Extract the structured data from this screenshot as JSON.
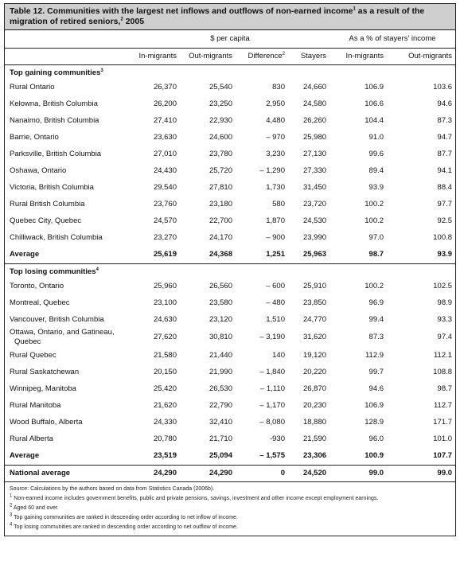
{
  "table": {
    "title_main": "Table 12. Communities with the largest net inflows and outflows of non-earned income",
    "title_sup1": "1",
    "title_mid": " as a result of the migration of retired seniors,",
    "title_sup2": "2",
    "title_end": " 2005",
    "group_headers": {
      "per_capita": "$ per capita",
      "percent": "As a % of stayers' income"
    },
    "column_headers": {
      "in_migrants": "In-migrants",
      "out_migrants": "Out-migrants",
      "difference": "Difference",
      "difference_sup": "2",
      "stayers": "Stayers",
      "pct_in_migrants": "In-migrants",
      "pct_out_migrants": "Out-migrants"
    },
    "sections": [
      {
        "label": "Top gaining communities",
        "label_sup": "3",
        "rows": [
          {
            "name": "Rural Ontario",
            "in": "26,370",
            "out": "25,540",
            "diff": "830",
            "stayers": "24,660",
            "pin": "106.9",
            "pout": "103.6"
          },
          {
            "name": "Kelowna, British Columbia",
            "in": "26,200",
            "out": "23,250",
            "diff": "2,950",
            "stayers": "24,580",
            "pin": "106.6",
            "pout": "94.6"
          },
          {
            "name": "Nanaimo, British Columbia",
            "in": "27,410",
            "out": "22,930",
            "diff": "4,480",
            "stayers": "26,260",
            "pin": "104.4",
            "pout": "87.3"
          },
          {
            "name": "Barrie, Ontario",
            "in": "23,630",
            "out": "24,600",
            "diff": "– 970",
            "stayers": "25,980",
            "pin": "91.0",
            "pout": "94.7"
          },
          {
            "name": "Parksville, British Columbia",
            "in": "27,010",
            "out": "23,780",
            "diff": "3,230",
            "stayers": "27,130",
            "pin": "99.6",
            "pout": "87.7"
          },
          {
            "name": "Oshawa, Ontario",
            "in": "24,430",
            "out": "25,720",
            "diff": "– 1,290",
            "stayers": "27,330",
            "pin": "89.4",
            "pout": "94.1"
          },
          {
            "name": "Victoria, British Columbia",
            "in": "29,540",
            "out": "27,810",
            "diff": "1,730",
            "stayers": "31,450",
            "pin": "93.9",
            "pout": "88.4"
          },
          {
            "name": "Rural British Columbia",
            "in": "23,760",
            "out": "23,180",
            "diff": "580",
            "stayers": "23,720",
            "pin": "100.2",
            "pout": "97.7"
          },
          {
            "name": "Quebec City, Quebec",
            "in": "24,570",
            "out": "22,700",
            "diff": "1,870",
            "stayers": "24,530",
            "pin": "100.2",
            "pout": "92.5"
          },
          {
            "name": "Chilliwack, British Columbia",
            "in": "23,270",
            "out": "24,170",
            "diff": "– 900",
            "stayers": "23,990",
            "pin": "97.0",
            "pout": "100.8"
          }
        ],
        "average": {
          "name": "Average",
          "in": "25,619",
          "out": "24,368",
          "diff": "1,251",
          "stayers": "25,963",
          "pin": "98.7",
          "pout": "93.9"
        }
      },
      {
        "label": "Top losing communities",
        "label_sup": "4",
        "rows": [
          {
            "name": "Toronto, Ontario",
            "in": "25,960",
            "out": "26,560",
            "diff": "– 600",
            "stayers": "25,910",
            "pin": "100.2",
            "pout": "102.5"
          },
          {
            "name": "Montreal, Quebec",
            "in": "23,100",
            "out": "23,580",
            "diff": "– 480",
            "stayers": "23,850",
            "pin": "96.9",
            "pout": "98.9"
          },
          {
            "name": "Vancouver, British Columbia",
            "in": "24,630",
            "out": "23,120",
            "diff": "1,510",
            "stayers": "24,770",
            "pin": "99.4",
            "pout": "93.3"
          },
          {
            "name": "Ottawa, Ontario, and Gatineau,",
            "name2": "Quebec",
            "in": "27,620",
            "out": "30,810",
            "diff": "– 3,190",
            "stayers": "31,620",
            "pin": "87.3",
            "pout": "97.4"
          },
          {
            "name": "Rural Quebec",
            "in": "21,580",
            "out": "21,440",
            "diff": "140",
            "stayers": "19,120",
            "pin": "112.9",
            "pout": "112.1"
          },
          {
            "name": "Rural Saskatchewan",
            "in": "20,150",
            "out": "21,990",
            "diff": "– 1,840",
            "stayers": "20,220",
            "pin": "99.7",
            "pout": "108.8"
          },
          {
            "name": "Winnipeg, Manitoba",
            "in": "25,420",
            "out": "26,530",
            "diff": "– 1,110",
            "stayers": "26,870",
            "pin": "94.6",
            "pout": "98.7"
          },
          {
            "name": "Rural Manitoba",
            "in": "21,620",
            "out": "22,790",
            "diff": "– 1,170",
            "stayers": "20,230",
            "pin": "106.9",
            "pout": "112.7"
          },
          {
            "name": "Wood Buffalo, Alberta",
            "in": "24,330",
            "out": "32,410",
            "diff": "– 8,080",
            "stayers": "18,880",
            "pin": "128.9",
            "pout": "171.7"
          },
          {
            "name": "Rural Alberta",
            "in": "20,780",
            "out": "21,710",
            "diff": "-930",
            "stayers": "21,590",
            "pin": "96.0",
            "pout": "101.0"
          }
        ],
        "average": {
          "name": "Average",
          "in": "23,519",
          "out": "25,094",
          "diff": "– 1,575",
          "stayers": "23,306",
          "pin": "100.9",
          "pout": "107.7"
        }
      }
    ],
    "national": {
      "name": "National average",
      "in": "24,290",
      "out": "24,290",
      "diff": "0",
      "stayers": "24,520",
      "pin": "99.0",
      "pout": "99.0"
    },
    "notes": [
      {
        "sup": "",
        "text": "Source: Calculations by the authors based on data from Statistics Canada (2006b)."
      },
      {
        "sup": "1",
        "text": "Non-earned income includes government benefits, public and private pensions, savings, investment and other income except employment earnings."
      },
      {
        "sup": "2",
        "text": "Aged 60 and over."
      },
      {
        "sup": "3",
        "text": "Top gaining communities are ranked in descending order according to net inflow of income."
      },
      {
        "sup": "4",
        "text": "Top losing communities are ranked in descending order according to net outflow of income."
      }
    ]
  }
}
